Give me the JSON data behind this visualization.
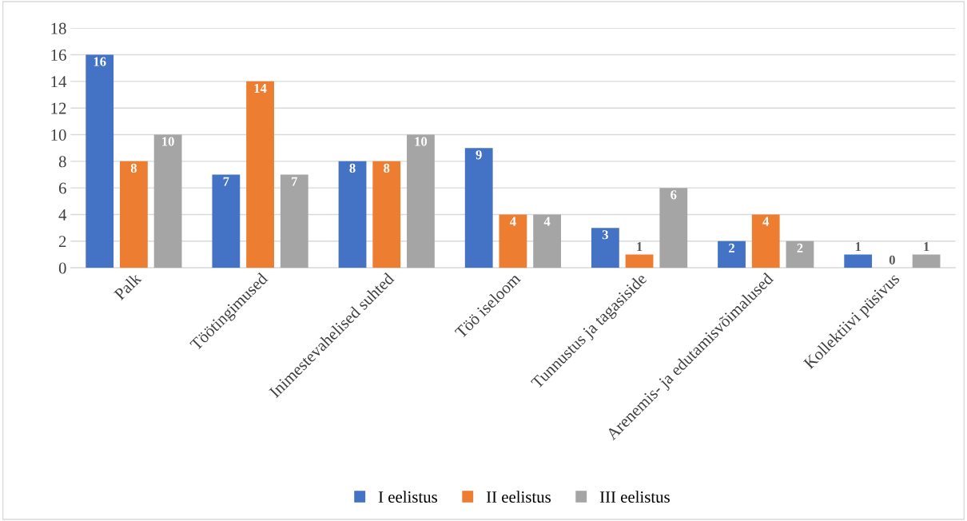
{
  "chart_data": {
    "type": "bar",
    "categories": [
      "Palk",
      "Töötingimused",
      "Inimestevahelised suhted",
      "Töö iseloom",
      "Tunnustus ja tagasiside",
      "Arenemis- ja edutamisvõimalused",
      "Kollektiivi püsivus"
    ],
    "series": [
      {
        "name": "I eelistus",
        "color": "#4472c4",
        "values": [
          16,
          7,
          8,
          9,
          3,
          2,
          1
        ]
      },
      {
        "name": "II eelistus",
        "color": "#ed7d31",
        "values": [
          8,
          14,
          8,
          4,
          1,
          4,
          0
        ]
      },
      {
        "name": "III eelistus",
        "color": "#a5a5a5",
        "values": [
          10,
          7,
          10,
          4,
          6,
          2,
          1
        ]
      }
    ],
    "ylim": [
      0,
      18
    ],
    "yticks": [
      0,
      2,
      4,
      6,
      8,
      10,
      12,
      14,
      16,
      18
    ],
    "grid": "y",
    "legend": "bottom",
    "data_labels": true
  }
}
